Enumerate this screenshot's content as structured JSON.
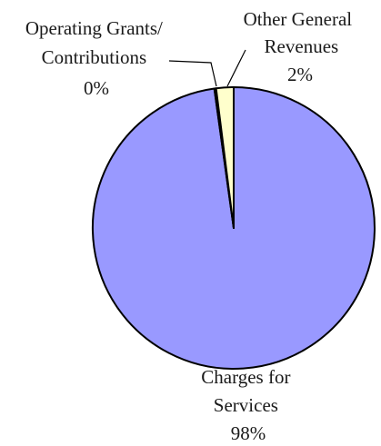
{
  "chart_data": {
    "type": "pie",
    "title": "",
    "slices": [
      {
        "label_lines": [
          "Charges for",
          "Services",
          "98%"
        ],
        "value": 98,
        "color": "#9999ff"
      },
      {
        "label_lines": [
          "Operating Grants/",
          "Contributions",
          "0%"
        ],
        "value": 0.2,
        "color": "#9999ff"
      },
      {
        "label_lines": [
          "Other General",
          "Revenues",
          "2%"
        ],
        "value": 2,
        "color": "#ffffcc"
      }
    ],
    "legend": "none",
    "outline_color": "#000000"
  }
}
